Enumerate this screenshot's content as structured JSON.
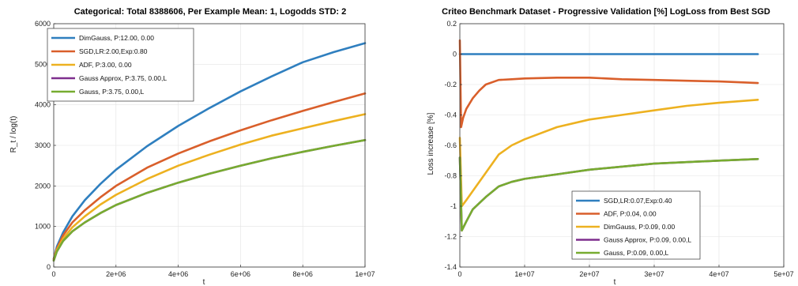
{
  "chart_data": [
    {
      "type": "line",
      "title": "Categorical: Total 8388606, Per Example Mean: 1, Logodds STD: 2",
      "xlabel": "t",
      "ylabel": "R_t / log(t)",
      "xlim": [
        0,
        10000000
      ],
      "ylim": [
        0,
        6000
      ],
      "xticks": [
        0,
        2000000,
        4000000,
        6000000,
        8000000,
        10000000
      ],
      "xtick_labels": [
        "0",
        "2e+06",
        "4e+06",
        "6e+06",
        "8e+06",
        "1e+07"
      ],
      "yticks": [
        0,
        1000,
        2000,
        3000,
        4000,
        5000,
        6000
      ],
      "ytick_labels": [
        "0",
        "1000",
        "2000",
        "3000",
        "4000",
        "5000",
        "6000"
      ],
      "grid": true,
      "legend_position": "top-left",
      "series": [
        {
          "name": "DimGauss, P:12.00, 0.00",
          "color": "#2f7fbf",
          "x": [
            0,
            100000,
            300000,
            600000,
            1000000,
            1500000,
            2000000,
            3000000,
            4000000,
            5000000,
            6000000,
            7000000,
            8000000,
            9000000,
            10000000
          ],
          "y": [
            200,
            500,
            850,
            1250,
            1650,
            2050,
            2400,
            2980,
            3480,
            3920,
            4330,
            4700,
            5050,
            5300,
            5520
          ]
        },
        {
          "name": "SGD,LR:2.00,Exp:0.80",
          "color": "#d95f2b",
          "x": [
            0,
            100000,
            300000,
            600000,
            1000000,
            1500000,
            2000000,
            3000000,
            4000000,
            5000000,
            6000000,
            7000000,
            8000000,
            9000000,
            10000000
          ],
          "y": [
            200,
            450,
            780,
            1100,
            1400,
            1720,
            2000,
            2450,
            2800,
            3100,
            3370,
            3620,
            3850,
            4070,
            4280
          ]
        },
        {
          "name": "ADF, P:3.00, 0.00",
          "color": "#edb120",
          "x": [
            0,
            100000,
            300000,
            600000,
            1000000,
            1500000,
            2000000,
            3000000,
            4000000,
            5000000,
            6000000,
            7000000,
            8000000,
            9000000,
            10000000
          ],
          "y": [
            180,
            420,
            700,
            980,
            1250,
            1540,
            1780,
            2170,
            2500,
            2770,
            3020,
            3240,
            3420,
            3600,
            3770
          ]
        },
        {
          "name": "Gauss Approx, P:3.75, 0.00,L",
          "color": "#7e2f8e",
          "x": [
            0,
            100000,
            300000,
            600000,
            1000000,
            1500000,
            2000000,
            3000000,
            4000000,
            5000000,
            6000000,
            7000000,
            8000000,
            9000000,
            10000000
          ],
          "y": [
            160,
            380,
            640,
            880,
            1100,
            1330,
            1530,
            1830,
            2080,
            2300,
            2500,
            2680,
            2840,
            2990,
            3130
          ]
        },
        {
          "name": "Gauss, P:3.75, 0.00,L",
          "color": "#77ac30",
          "x": [
            0,
            100000,
            300000,
            600000,
            1000000,
            1500000,
            2000000,
            3000000,
            4000000,
            5000000,
            6000000,
            7000000,
            8000000,
            9000000,
            10000000
          ],
          "y": [
            160,
            380,
            640,
            880,
            1100,
            1330,
            1530,
            1830,
            2080,
            2300,
            2500,
            2680,
            2840,
            2990,
            3130
          ]
        }
      ]
    },
    {
      "type": "line",
      "title": "Criteo Benchmark Dataset - Progressive Validation [%] LogLoss from Best SGD",
      "xlabel": "t",
      "ylabel": "Loss increase [%]",
      "xlim": [
        0,
        50000000
      ],
      "ylim": [
        -1.4,
        0.2
      ],
      "xticks": [
        0,
        10000000,
        20000000,
        30000000,
        40000000,
        50000000
      ],
      "xtick_labels": [
        "0",
        "1e+07",
        "2e+07",
        "3e+07",
        "4e+07",
        "5e+07"
      ],
      "yticks": [
        -1.4,
        -1.2,
        -1,
        -0.8,
        -0.6,
        -0.4,
        -0.2,
        0,
        0.2
      ],
      "ytick_labels": [
        "-1.4",
        "-1.2",
        "-1",
        "-0.8",
        "-0.6",
        "-0.4",
        "-0.2",
        "0",
        "0.2"
      ],
      "grid": true,
      "legend_position": "bottom-center",
      "series": [
        {
          "name": "SGD,LR:0.07,Exp:0.40",
          "color": "#2f7fbf",
          "x": [
            0,
            10000000,
            20000000,
            30000000,
            40000000,
            46000000
          ],
          "y": [
            0,
            0,
            0,
            0,
            0,
            0
          ]
        },
        {
          "name": "ADF, P:0.04, 0.00",
          "color": "#d95f2b",
          "x": [
            0,
            200000,
            500000,
            1000000,
            2000000,
            3000000,
            4000000,
            6000000,
            8000000,
            10000000,
            15000000,
            20000000,
            25000000,
            30000000,
            35000000,
            40000000,
            46000000
          ],
          "y": [
            0.09,
            -0.48,
            -0.42,
            -0.36,
            -0.29,
            -0.24,
            -0.2,
            -0.17,
            -0.165,
            -0.16,
            -0.155,
            -0.155,
            -0.165,
            -0.17,
            -0.175,
            -0.18,
            -0.19
          ]
        },
        {
          "name": "DimGauss, P:0.09, 0.00",
          "color": "#edb120",
          "x": [
            0,
            300000,
            1000000,
            2000000,
            4000000,
            6000000,
            8000000,
            10000000,
            15000000,
            20000000,
            25000000,
            30000000,
            35000000,
            40000000,
            46000000
          ],
          "y": [
            -0.55,
            -1.0,
            -0.96,
            -0.9,
            -0.78,
            -0.66,
            -0.6,
            -0.56,
            -0.48,
            -0.43,
            -0.4,
            -0.37,
            -0.34,
            -0.32,
            -0.3
          ]
        },
        {
          "name": "Gauss Approx, P:0.09, 0.00,L",
          "color": "#7e2f8e",
          "x": [
            0,
            300000,
            1000000,
            2000000,
            4000000,
            6000000,
            8000000,
            10000000,
            15000000,
            20000000,
            25000000,
            30000000,
            35000000,
            40000000,
            46000000
          ],
          "y": [
            -0.68,
            -1.16,
            -1.1,
            -1.02,
            -0.94,
            -0.87,
            -0.84,
            -0.82,
            -0.79,
            -0.76,
            -0.74,
            -0.72,
            -0.71,
            -0.7,
            -0.69
          ]
        },
        {
          "name": "Gauss, P:0.09, 0.00,L",
          "color": "#77ac30",
          "x": [
            0,
            300000,
            1000000,
            2000000,
            4000000,
            6000000,
            8000000,
            10000000,
            15000000,
            20000000,
            25000000,
            30000000,
            35000000,
            40000000,
            46000000
          ],
          "y": [
            -0.68,
            -1.16,
            -1.1,
            -1.02,
            -0.94,
            -0.87,
            -0.84,
            -0.82,
            -0.79,
            -0.76,
            -0.74,
            -0.72,
            -0.71,
            -0.7,
            -0.69
          ]
        }
      ]
    }
  ]
}
